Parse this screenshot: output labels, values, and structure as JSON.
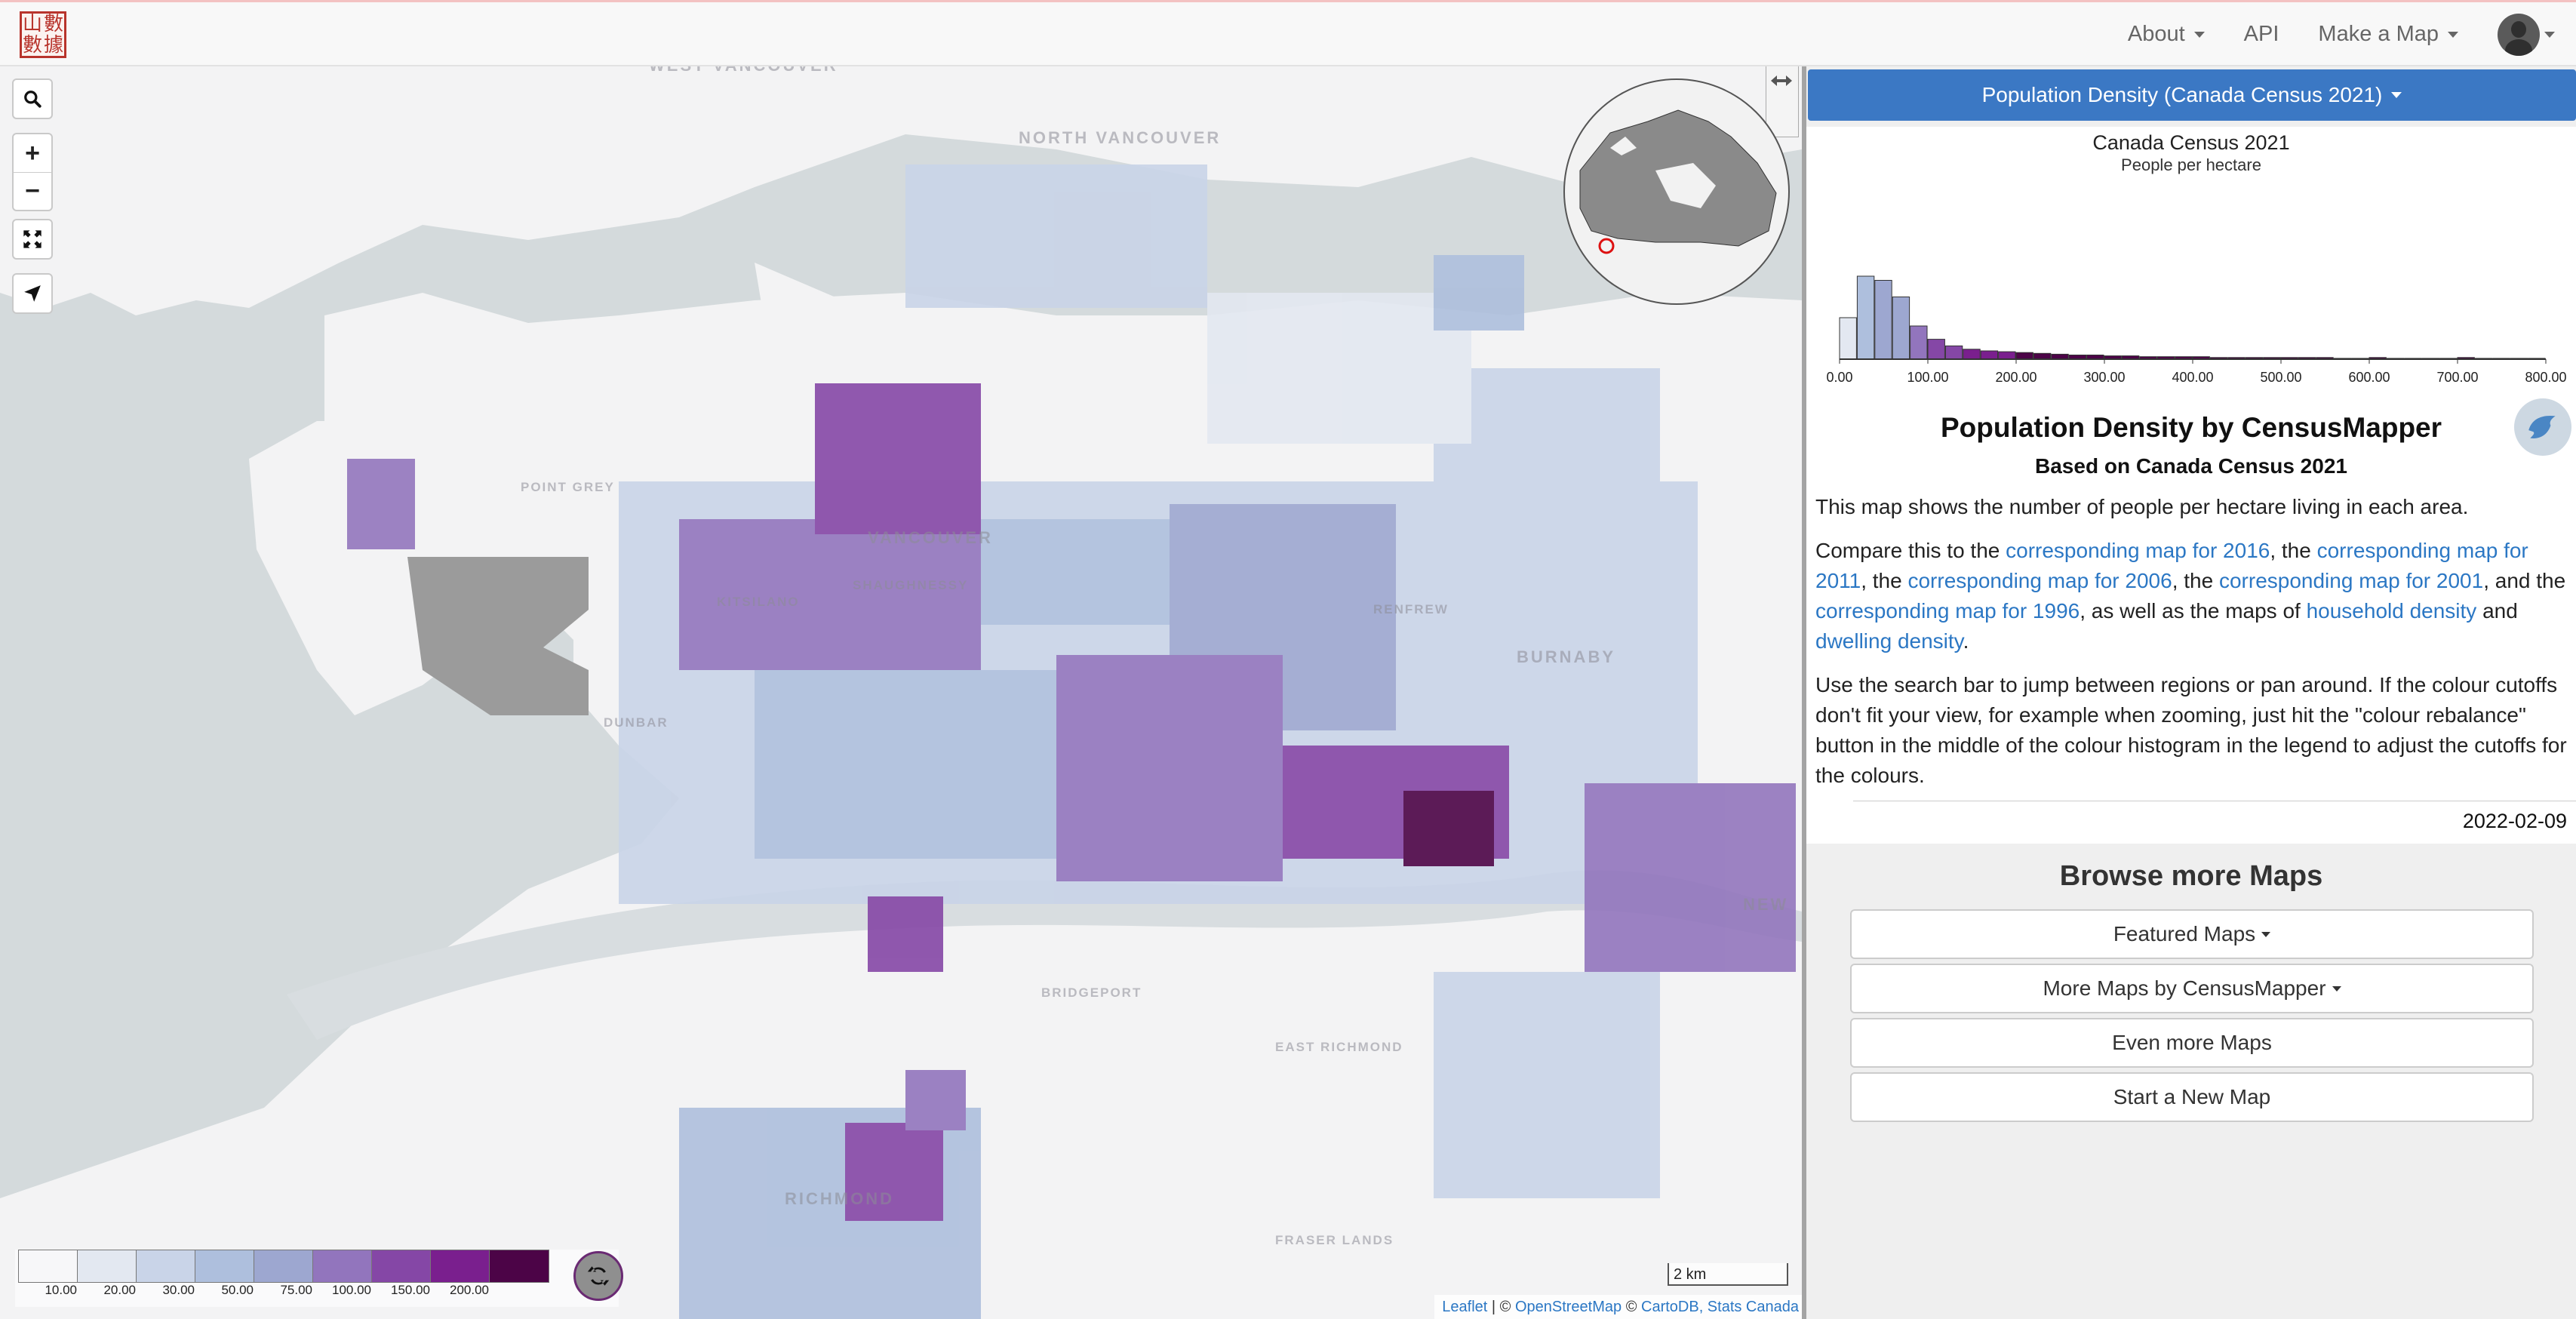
{
  "navbar": {
    "logo_glyphs": [
      "山",
      "數",
      "數",
      "據"
    ],
    "items": [
      {
        "label": "About",
        "dropdown": true
      },
      {
        "label": "API",
        "dropdown": false
      },
      {
        "label": "Make a Map",
        "dropdown": true
      }
    ]
  },
  "map": {
    "place_labels": [
      "WEST VANCOUVER",
      "NORTH VANCOUVER",
      "VANCOUVER",
      "BURNABY",
      "NEW",
      "BRIDGEPORT",
      "EAST RICHMOND",
      "RICHMOND",
      "FRASER LANDS",
      "KITSILANO",
      "POINT GREY",
      "SHAUGHNESSY",
      "DUNBAR",
      "RENFREW"
    ],
    "controls": {
      "search": "search-icon",
      "zoom_in": "+",
      "zoom_out": "−",
      "fullscreen": "expand-icon",
      "locate": "location-arrow-icon"
    },
    "legend": {
      "colors": [
        "#f7f7f9",
        "#e3e8f1",
        "#c9d4e8",
        "#aebfdd",
        "#9da7d0",
        "#9275bd",
        "#8547a6",
        "#7a1f8e",
        "#4c0447"
      ],
      "ticks": [
        "10.00",
        "20.00",
        "30.00",
        "50.00",
        "75.00",
        "100.00",
        "150.00",
        "200.00"
      ]
    },
    "scale_label": "2 km",
    "attribution": {
      "leaflet": "Leaflet",
      "sep1": " | © ",
      "osm": "OpenStreetMap",
      "sep2": " © ",
      "carto": "CartoDB, Stats Canada"
    }
  },
  "panel": {
    "variable_button": "Population Density (Canada Census 2021)",
    "histogram": {
      "title": "Canada Census 2021",
      "subtitle": "People per hectare"
    },
    "story": {
      "title": "Population Density by CensusMapper",
      "subtitle": "Based on Canada Census 2021",
      "p1": "This map shows the number of people per hectare living in each area.",
      "p2_parts": {
        "t1": "Compare this to the ",
        "l1": "corresponding map for 2016",
        "t2": ", the ",
        "l2": "corresponding map for 2011",
        "t3": ", the ",
        "l3": "corresponding map for 2006",
        "t4": ", the ",
        "l4": "corresponding map for 2001",
        "t5": ", and the ",
        "l5": "corresponding map for 1996",
        "t6": ", as well as the maps of ",
        "l6": "household density",
        "t7": " and ",
        "l7": "dwelling density",
        "t8": "."
      },
      "p3": "Use the search bar to jump between regions or pan around. If the colour cutoffs don't fit your view, for example when zooming, just hit the \"colour rebalance\" button in the middle of the colour histogram in the legend to adjust the cutoffs for the colours.",
      "date": "2022-02-09"
    },
    "browse": {
      "title": "Browse more Maps",
      "buttons": [
        {
          "label": "Featured Maps",
          "dropdown": true
        },
        {
          "label": "More Maps by CensusMapper",
          "dropdown": true
        },
        {
          "label": "Even more Maps",
          "dropdown": false
        },
        {
          "label": "Start a New Map",
          "dropdown": false
        }
      ]
    }
  },
  "chart_data": {
    "type": "bar",
    "title": "Canada Census 2021",
    "ylabel": "",
    "xlabel": "People per hectare",
    "xlim": [
      0,
      800
    ],
    "tick_labels": [
      "0.00",
      "100.00",
      "200.00",
      "300.00",
      "400.00",
      "500.00",
      "600.00",
      "700.00",
      "800.00"
    ],
    "bin_width": 20,
    "bin_starts": [
      0,
      20,
      40,
      60,
      80,
      100,
      120,
      140,
      160,
      180,
      200,
      220,
      240,
      260,
      280,
      300,
      320,
      340,
      360,
      380,
      400,
      420,
      440,
      460,
      480,
      500,
      520,
      540,
      560,
      580,
      600,
      620,
      640,
      660,
      680,
      700,
      720,
      740,
      760,
      780
    ],
    "values": [
      50,
      100,
      95,
      75,
      40,
      24,
      16,
      12,
      10,
      9,
      8,
      7,
      6,
      5,
      5,
      4,
      4,
      3,
      3,
      3,
      3,
      2,
      2,
      2,
      2,
      2,
      2,
      2,
      1,
      1,
      2,
      1,
      1,
      1,
      1,
      2,
      1,
      1,
      1,
      1
    ]
  }
}
